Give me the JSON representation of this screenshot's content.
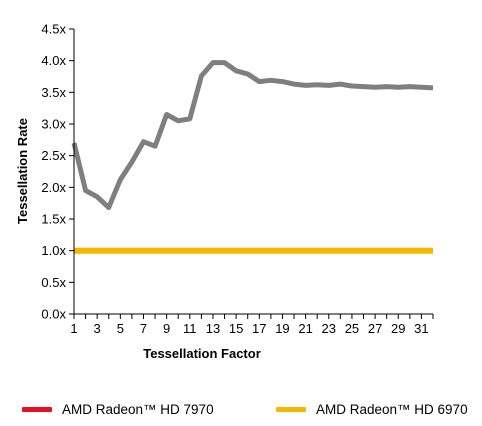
{
  "chart_data": {
    "type": "line",
    "xlabel": "Tessellation Factor",
    "ylabel": "Tessellation Rate",
    "x_ticks": [
      1,
      3,
      5,
      7,
      9,
      11,
      13,
      15,
      17,
      19,
      21,
      23,
      25,
      27,
      29,
      31
    ],
    "y_ticks": [
      "0.0x",
      "0.5x",
      "1.0x",
      "1.5x",
      "2.0x",
      "2.5x",
      "3.0x",
      "3.5x",
      "4.0x",
      "4.5x"
    ],
    "xlim": [
      1,
      32
    ],
    "ylim": [
      0,
      4.5
    ],
    "grid": false,
    "legend_position": "bottom",
    "series": [
      {
        "name": "AMD Radeon™ HD 7970",
        "color": "#e8101e",
        "display_color": "#7f7f7f",
        "x": [
          1,
          2,
          3,
          4,
          5,
          6,
          7,
          8,
          9,
          10,
          11,
          12,
          13,
          14,
          15,
          16,
          17,
          18,
          19,
          20,
          21,
          22,
          23,
          24,
          25,
          26,
          27,
          28,
          29,
          30,
          31,
          32
        ],
        "values": [
          2.7,
          1.95,
          1.85,
          1.68,
          2.12,
          2.4,
          2.72,
          2.65,
          3.15,
          3.05,
          3.08,
          3.76,
          3.97,
          3.97,
          3.84,
          3.79,
          3.67,
          3.69,
          3.67,
          3.63,
          3.61,
          3.62,
          3.61,
          3.63,
          3.6,
          3.59,
          3.58,
          3.59,
          3.58,
          3.59,
          3.58,
          3.57
        ]
      },
      {
        "name": "AMD Radeon™ HD 6970",
        "color": "#f5b800",
        "x": [
          1,
          32
        ],
        "values": [
          1.0,
          1.0
        ]
      }
    ]
  }
}
